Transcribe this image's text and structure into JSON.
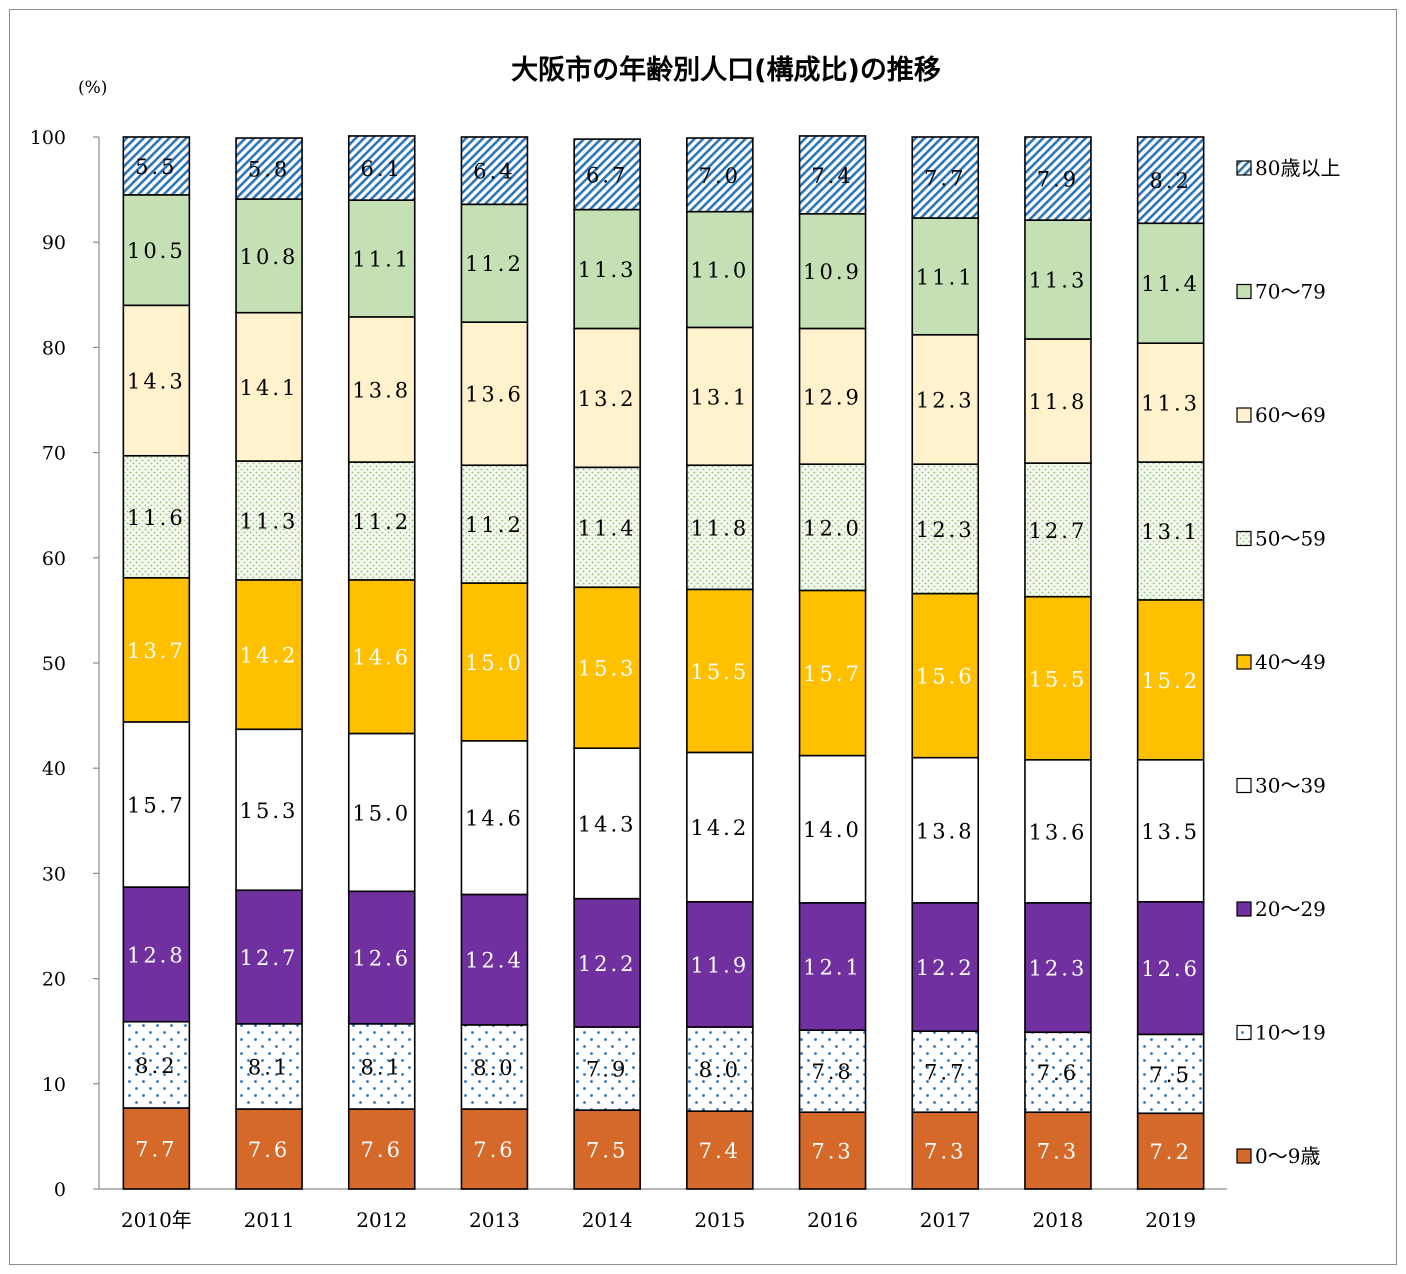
{
  "chart_data": {
    "type": "bar",
    "stacked": true,
    "title": "大阪市の年齢別人口(構成比)の推移",
    "ylabel": "(%)",
    "xlabel": "",
    "ylim": [
      0,
      100
    ],
    "yticks": [
      "0",
      "10",
      "20",
      "30",
      "40",
      "50",
      "60",
      "70",
      "80",
      "90",
      "100"
    ],
    "categories": [
      "2010年",
      "2011",
      "2012",
      "2013",
      "2014",
      "2015",
      "2016",
      "2017",
      "2018",
      "2019"
    ],
    "series": [
      {
        "name": "0～9歳",
        "color": "#d4692a",
        "pattern": "solid",
        "label_color": "#ffffff",
        "values": [
          7.7,
          7.6,
          7.6,
          7.6,
          7.5,
          7.4,
          7.3,
          7.3,
          7.3,
          7.2
        ],
        "labels": [
          "7.7",
          "7.6",
          "7.6",
          "7.6",
          "7.5",
          "7.4",
          "7.3",
          "7.3",
          "7.3",
          "7.2"
        ]
      },
      {
        "name": "10～19",
        "color": "#ffffff",
        "pattern": "dots-blue",
        "label_color": "#000000",
        "values": [
          8.2,
          8.1,
          8.1,
          8.0,
          7.9,
          8.0,
          7.8,
          7.7,
          7.6,
          7.5
        ],
        "labels": [
          "8.2",
          "8.1",
          "8.1",
          "8.0",
          "7.9",
          "8.0",
          "7.8",
          "7.7",
          "7.6",
          "7.5"
        ]
      },
      {
        "name": "20～29",
        "color": "#7030a0",
        "pattern": "solid",
        "label_color": "#ffffff",
        "values": [
          12.8,
          12.7,
          12.6,
          12.4,
          12.2,
          11.9,
          12.1,
          12.2,
          12.3,
          12.6
        ],
        "labels": [
          "12.8",
          "12.7",
          "12.6",
          "12.4",
          "12.2",
          "11.9",
          "12.1",
          "12.2",
          "12.3",
          "12.6"
        ]
      },
      {
        "name": "30～39",
        "color": "#ffffff",
        "pattern": "solid",
        "label_color": "#000000",
        "values": [
          15.7,
          15.3,
          15.0,
          14.6,
          14.3,
          14.2,
          14.0,
          13.8,
          13.6,
          13.5
        ],
        "labels": [
          "15.7",
          "15.3",
          "15.0",
          "14.6",
          "14.3",
          "14.2",
          "14.0",
          "13.8",
          "13.6",
          "13.5"
        ]
      },
      {
        "name": "40～49",
        "color": "#ffc000",
        "pattern": "solid",
        "label_color": "#ffffff",
        "values": [
          13.7,
          14.2,
          14.6,
          15.0,
          15.3,
          15.5,
          15.7,
          15.6,
          15.5,
          15.2
        ],
        "labels": [
          "13.7",
          "14.2",
          "14.6",
          "15.0",
          "15.3",
          "15.5",
          "15.7",
          "15.6",
          "15.5",
          "15.2"
        ]
      },
      {
        "name": "50～59",
        "color": "#eef4e6",
        "pattern": "dots-green",
        "label_color": "#000000",
        "values": [
          11.6,
          11.3,
          11.2,
          11.2,
          11.4,
          11.8,
          12.0,
          12.3,
          12.7,
          13.1
        ],
        "labels": [
          "11.6",
          "11.3",
          "11.2",
          "11.2",
          "11.4",
          "11.8",
          "12.0",
          "12.3",
          "12.7",
          "13.1"
        ]
      },
      {
        "name": "60～69",
        "color": "#fff2cc",
        "pattern": "solid",
        "label_color": "#000000",
        "values": [
          14.3,
          14.1,
          13.8,
          13.6,
          13.2,
          13.1,
          12.9,
          12.3,
          11.8,
          11.3
        ],
        "labels": [
          "14.3",
          "14.1",
          "13.8",
          "13.6",
          "13.2",
          "13.1",
          "12.9",
          "12.3",
          "11.8",
          "11.3"
        ]
      },
      {
        "name": "70～79",
        "color": "#c5e0b4",
        "pattern": "solid",
        "label_color": "#000000",
        "values": [
          10.5,
          10.8,
          11.1,
          11.2,
          11.3,
          11.0,
          10.9,
          11.1,
          11.3,
          11.4
        ],
        "labels": [
          "10.5",
          "10.8",
          "11.1",
          "11.2",
          "11.3",
          "11.0",
          "10.9",
          "11.1",
          "11.3",
          "11.4"
        ]
      },
      {
        "name": "80歳以上",
        "color": "#ffffff",
        "pattern": "hatch-blue",
        "label_color": "#000000",
        "values": [
          5.5,
          5.8,
          6.1,
          6.4,
          6.7,
          7.0,
          7.4,
          7.7,
          7.9,
          8.2
        ],
        "labels": [
          "5.5",
          "5.8",
          "6.1",
          "6.4",
          "6.7",
          "7.0",
          "7.4",
          "7.7",
          "7.9",
          "8.2"
        ]
      }
    ],
    "legend_position": "right",
    "grid": false
  }
}
